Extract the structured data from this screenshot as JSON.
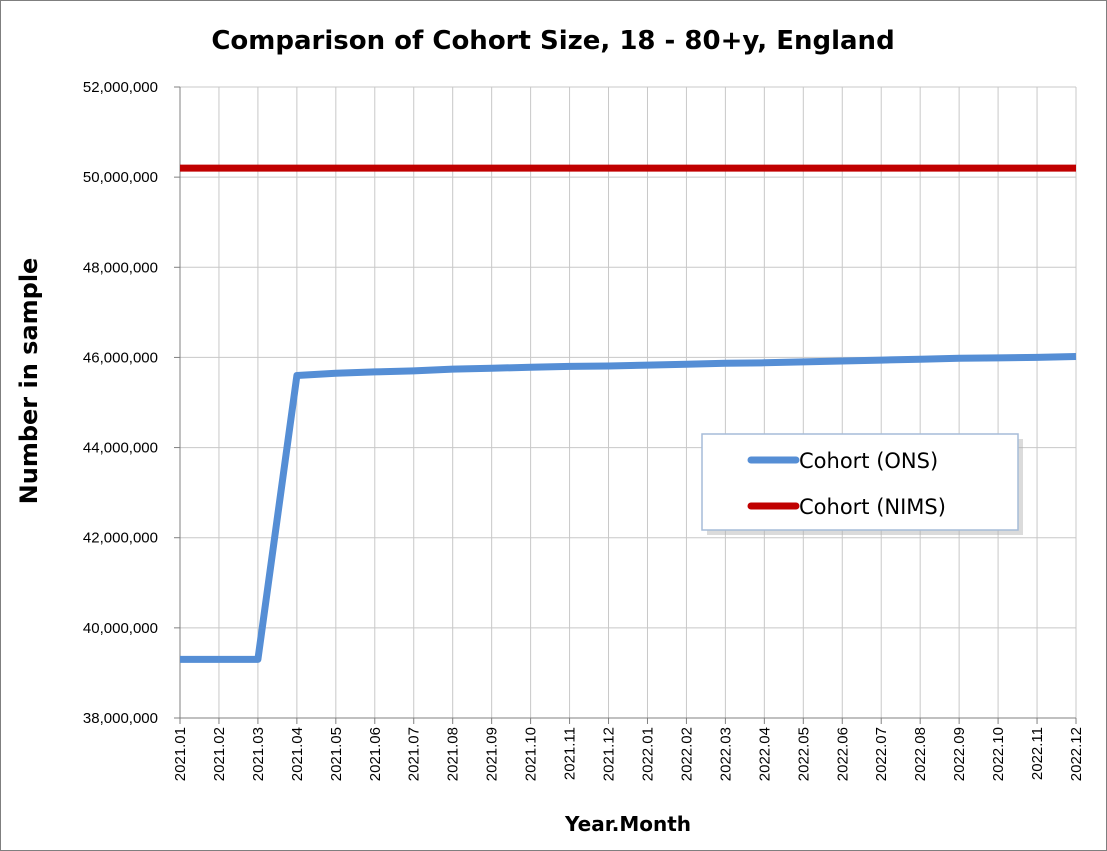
{
  "chart_data": {
    "type": "line",
    "title": "Comparison of Cohort Size, 18 - 80+y, England",
    "xlabel": "Year.Month",
    "ylabel": "Number in sample",
    "ylim": [
      38000000,
      52000000
    ],
    "yticks": [
      38000000,
      40000000,
      42000000,
      44000000,
      46000000,
      48000000,
      50000000,
      52000000
    ],
    "ytick_labels": [
      "38,000,000",
      "40,000,000",
      "42,000,000",
      "44,000,000",
      "46,000,000",
      "48,000,000",
      "50,000,000",
      "52,000,000"
    ],
    "grid": true,
    "legend_position": "right",
    "categories": [
      "2021.01",
      "2021.02",
      "2021.03",
      "2021.04",
      "2021.05",
      "2021.06",
      "2021.07",
      "2021.08",
      "2021.09",
      "2021.10",
      "2021.11",
      "2021.12",
      "2022.01",
      "2022.02",
      "2022.03",
      "2022.04",
      "2022.05",
      "2022.06",
      "2022.07",
      "2022.08",
      "2022.09",
      "2022.10",
      "2022.11",
      "2022.12"
    ],
    "series": [
      {
        "name": "Cohort (ONS)",
        "color": "#558ed5",
        "values": [
          39300000,
          39300000,
          39300000,
          45600000,
          45650000,
          45680000,
          45700000,
          45740000,
          45760000,
          45780000,
          45800000,
          45810000,
          45830000,
          45850000,
          45870000,
          45880000,
          45900000,
          45920000,
          45940000,
          45960000,
          45980000,
          45990000,
          46000000,
          46020000
        ]
      },
      {
        "name": "Cohort (NIMS)",
        "color": "#c00000",
        "values": [
          50200000,
          50200000,
          50200000,
          50200000,
          50200000,
          50200000,
          50200000,
          50200000,
          50200000,
          50200000,
          50200000,
          50200000,
          50200000,
          50200000,
          50200000,
          50200000,
          50200000,
          50200000,
          50200000,
          50200000,
          50200000,
          50200000,
          50200000,
          50200000
        ]
      }
    ]
  }
}
